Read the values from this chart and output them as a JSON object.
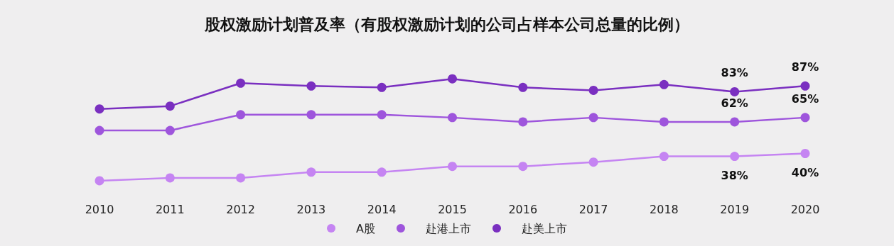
{
  "chart_data": {
    "type": "line",
    "title": "股权激励计划普及率（有股权激励计划的公司占样本公司总量的比例）",
    "categories": [
      "2010",
      "2011",
      "2012",
      "2013",
      "2014",
      "2015",
      "2016",
      "2017",
      "2018",
      "2019",
      "2020"
    ],
    "series": [
      {
        "name": "A股",
        "color": "#c584f2",
        "values": [
          21,
          23,
          23,
          27,
          27,
          31,
          31,
          34,
          38,
          38,
          40
        ],
        "value_labels": [
          null,
          null,
          null,
          null,
          null,
          null,
          null,
          null,
          null,
          "38%",
          "40%"
        ]
      },
      {
        "name": "赴港上市",
        "color": "#9e55dc",
        "values": [
          56,
          56,
          67,
          67,
          67,
          65,
          62,
          65,
          62,
          62,
          65
        ],
        "value_labels": [
          null,
          null,
          null,
          null,
          null,
          null,
          null,
          null,
          null,
          "62%",
          "65%"
        ]
      },
      {
        "name": "赴美上市",
        "color": "#7a2fc0",
        "values": [
          71,
          73,
          89,
          87,
          86,
          92,
          86,
          84,
          88,
          83,
          87
        ],
        "value_labels": [
          null,
          null,
          null,
          null,
          null,
          null,
          null,
          null,
          null,
          "83%",
          "87%"
        ]
      }
    ],
    "marker": "circle",
    "line_style": "solid",
    "legend": "bottom",
    "grid": false
  }
}
